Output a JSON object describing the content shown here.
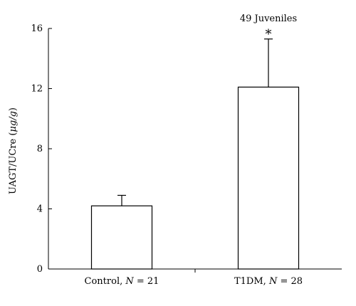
{
  "chart_data": {
    "type": "bar",
    "categories": [
      {
        "pre": "Control, ",
        "ital": "N",
        "post": " = 21"
      },
      {
        "pre": "T1DM, ",
        "ital": "N",
        "post": " = 28"
      }
    ],
    "values": [
      4.2,
      12.1
    ],
    "error_upper": [
      4.9,
      15.3
    ],
    "ylim": [
      0,
      16
    ],
    "yticks": [
      0,
      4,
      8,
      12,
      16
    ],
    "ylabel": {
      "pre": "UAGT/UCre (",
      "ital": "μg/g",
      "post": ")"
    },
    "annotation": "49 Juveniles",
    "significance": "*",
    "bar_fill": "#ffffff",
    "bar_stroke": "#000000",
    "grid": false,
    "legend": "none"
  }
}
